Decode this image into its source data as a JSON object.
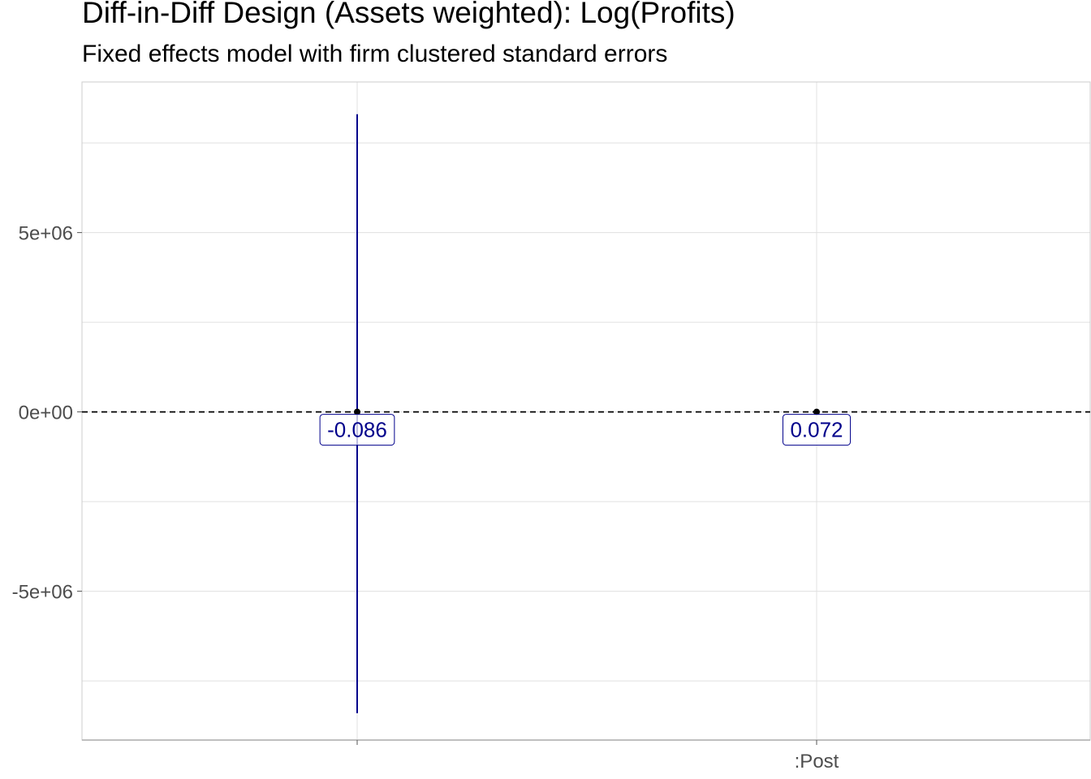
{
  "chart_data": {
    "type": "scatter",
    "title": "Diff-in-Diff Design (Assets weighted): Log(Profits)",
    "subtitle": "Fixed effects model with firm clustered standard errors",
    "xlabel": "",
    "ylabel": "",
    "categories": [
      "",
      ":Post"
    ],
    "points": [
      {
        "category": "",
        "estimate": -0.086,
        "label": "-0.086",
        "ci_low": -8400000,
        "ci_high": 8300000
      },
      {
        "category": ":Post",
        "estimate": 0.072,
        "label": "0.072",
        "ci_low": 0,
        "ci_high": 0
      }
    ],
    "y_ticks": [
      {
        "value": 5000000,
        "label": "5e+06"
      },
      {
        "value": 0,
        "label": "0e+00"
      },
      {
        "value": -5000000,
        "label": "-5e+06"
      }
    ],
    "ylim": [
      -9150000,
      9200000
    ],
    "reference_line": 0,
    "grid": true,
    "legend": "none",
    "colors": {
      "interval": "#00008B",
      "label_text": "#00008B",
      "point": "#000000",
      "grid": "#e0e0e0"
    }
  }
}
